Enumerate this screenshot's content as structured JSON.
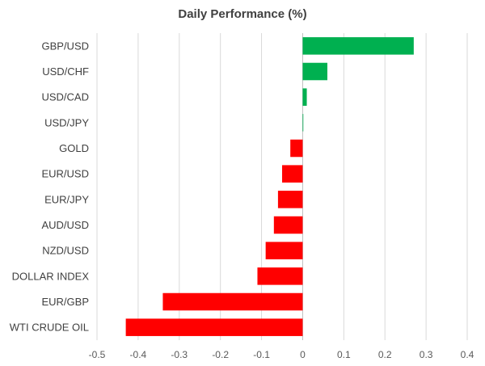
{
  "chart_data": {
    "type": "bar",
    "orientation": "horizontal",
    "title": "Daily Performance (%)",
    "xlabel": "",
    "ylabel": "",
    "categories": [
      "GBP/USD",
      "USD/CHF",
      "USD/CAD",
      "USD/JPY",
      "GOLD",
      "EUR/USD",
      "EUR/JPY",
      "AUD/USD",
      "NZD/USD",
      "DOLLAR INDEX",
      "EUR/GBP",
      "WTI CRUDE OIL"
    ],
    "values": [
      0.27,
      0.06,
      0.01,
      0.001,
      -0.03,
      -0.05,
      -0.06,
      -0.07,
      -0.09,
      -0.11,
      -0.34,
      -0.43
    ],
    "xlim": [
      -0.5,
      0.4
    ],
    "x_ticks": [
      "-0.5",
      "-0.4",
      "-0.3",
      "-0.2",
      "-0.1",
      "0",
      "0.1",
      "0.2",
      "0.3",
      "0.4"
    ],
    "tick_values": [
      -0.5,
      -0.4,
      -0.3,
      -0.2,
      -0.1,
      0,
      0.1,
      0.2,
      0.3,
      0.4
    ],
    "grid": "vertical",
    "legend": "none",
    "colors": {
      "positive": "#00b050",
      "negative": "#ff0000",
      "grid": "#d9d9d9",
      "axis": "#bfbfbf"
    }
  }
}
